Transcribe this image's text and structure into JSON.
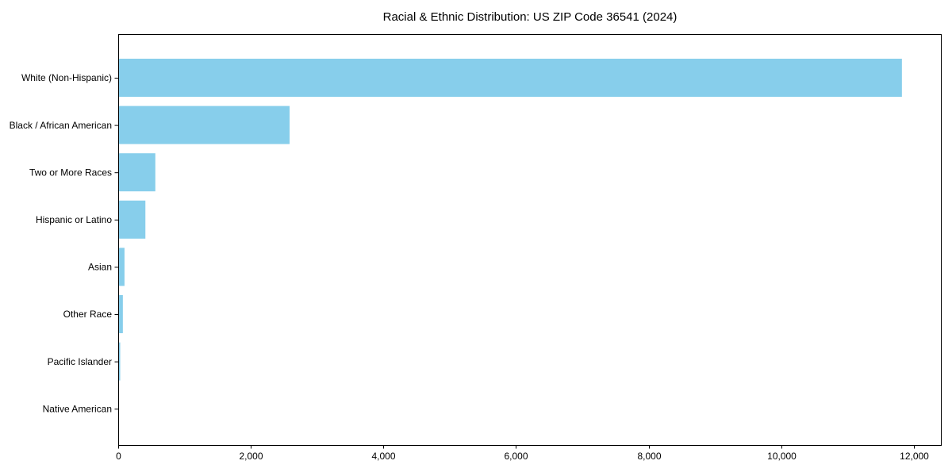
{
  "chart_data": {
    "type": "bar",
    "orientation": "horizontal",
    "title": "Racial & Ethnic Distribution: US ZIP Code 36541 (2024)",
    "categories": [
      "White (Non-Hispanic)",
      "Black / African American",
      "Two or More Races",
      "Hispanic or Latino",
      "Asian",
      "Other Race",
      "Pacific Islander",
      "Native American"
    ],
    "values": [
      11820,
      2585,
      560,
      410,
      95,
      70,
      30,
      5
    ],
    "xlabel": "",
    "ylabel": "",
    "xlim": [
      0,
      12420
    ],
    "x_ticks": [
      0,
      2000,
      4000,
      6000,
      8000,
      10000,
      12000
    ],
    "x_tick_labels": [
      "0",
      "2,000",
      "4,000",
      "6,000",
      "8,000",
      "10,000",
      "12,000"
    ],
    "bar_color": "#87CEEB",
    "axis_color": "#000000",
    "background_color": "#ffffff",
    "grid": false,
    "legend": null
  }
}
